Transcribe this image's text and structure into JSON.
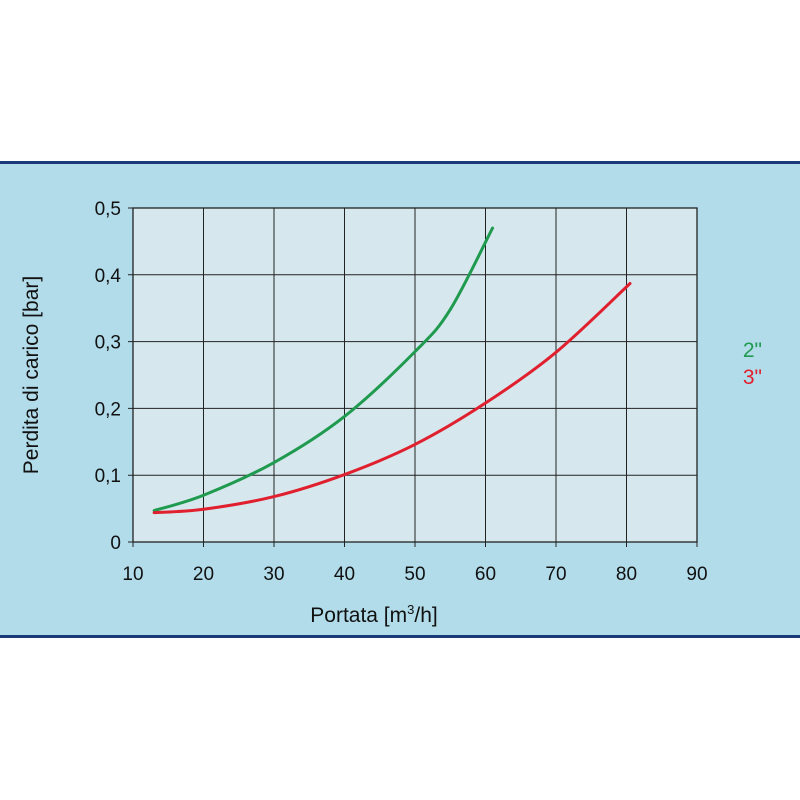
{
  "colors": {
    "panel_bg": "#b2dcea",
    "plot_bg": "#d6e8ee",
    "border": "#1b3a7a",
    "grid": "#222222",
    "series_2": "#1f9a4f",
    "series_3": "#e0202e"
  },
  "chart_data": {
    "type": "line",
    "xlabel_main": "Portata [m",
    "xlabel_sup": "3",
    "xlabel_tail": "/h]",
    "ylabel": "Perdita di carico [bar]",
    "xlim": [
      10,
      90
    ],
    "ylim": [
      0,
      0.5
    ],
    "x_ticks": [
      10,
      20,
      30,
      40,
      50,
      60,
      70,
      80,
      90
    ],
    "x_tick_labels": [
      "10",
      "20",
      "30",
      "40",
      "50",
      "60",
      "70",
      "80",
      "90"
    ],
    "y_ticks": [
      0,
      0.1,
      0.2,
      0.3,
      0.4,
      0.5
    ],
    "y_tick_labels": [
      "0",
      "0,1",
      "0,2",
      "0,3",
      "0,4",
      "0,5"
    ],
    "grid": true,
    "legend_position": "right",
    "series": [
      {
        "name": "2\"",
        "color": "#1f9a4f",
        "x": [
          13,
          20,
          30,
          40,
          50,
          55,
          61
        ],
        "y": [
          0.047,
          0.07,
          0.119,
          0.188,
          0.285,
          0.348,
          0.47
        ]
      },
      {
        "name": "3\"",
        "color": "#e0202e",
        "x": [
          13,
          20,
          30,
          40,
          50,
          60,
          70,
          80.5
        ],
        "y": [
          0.044,
          0.049,
          0.068,
          0.101,
          0.146,
          0.208,
          0.284,
          0.387
        ]
      }
    ]
  }
}
